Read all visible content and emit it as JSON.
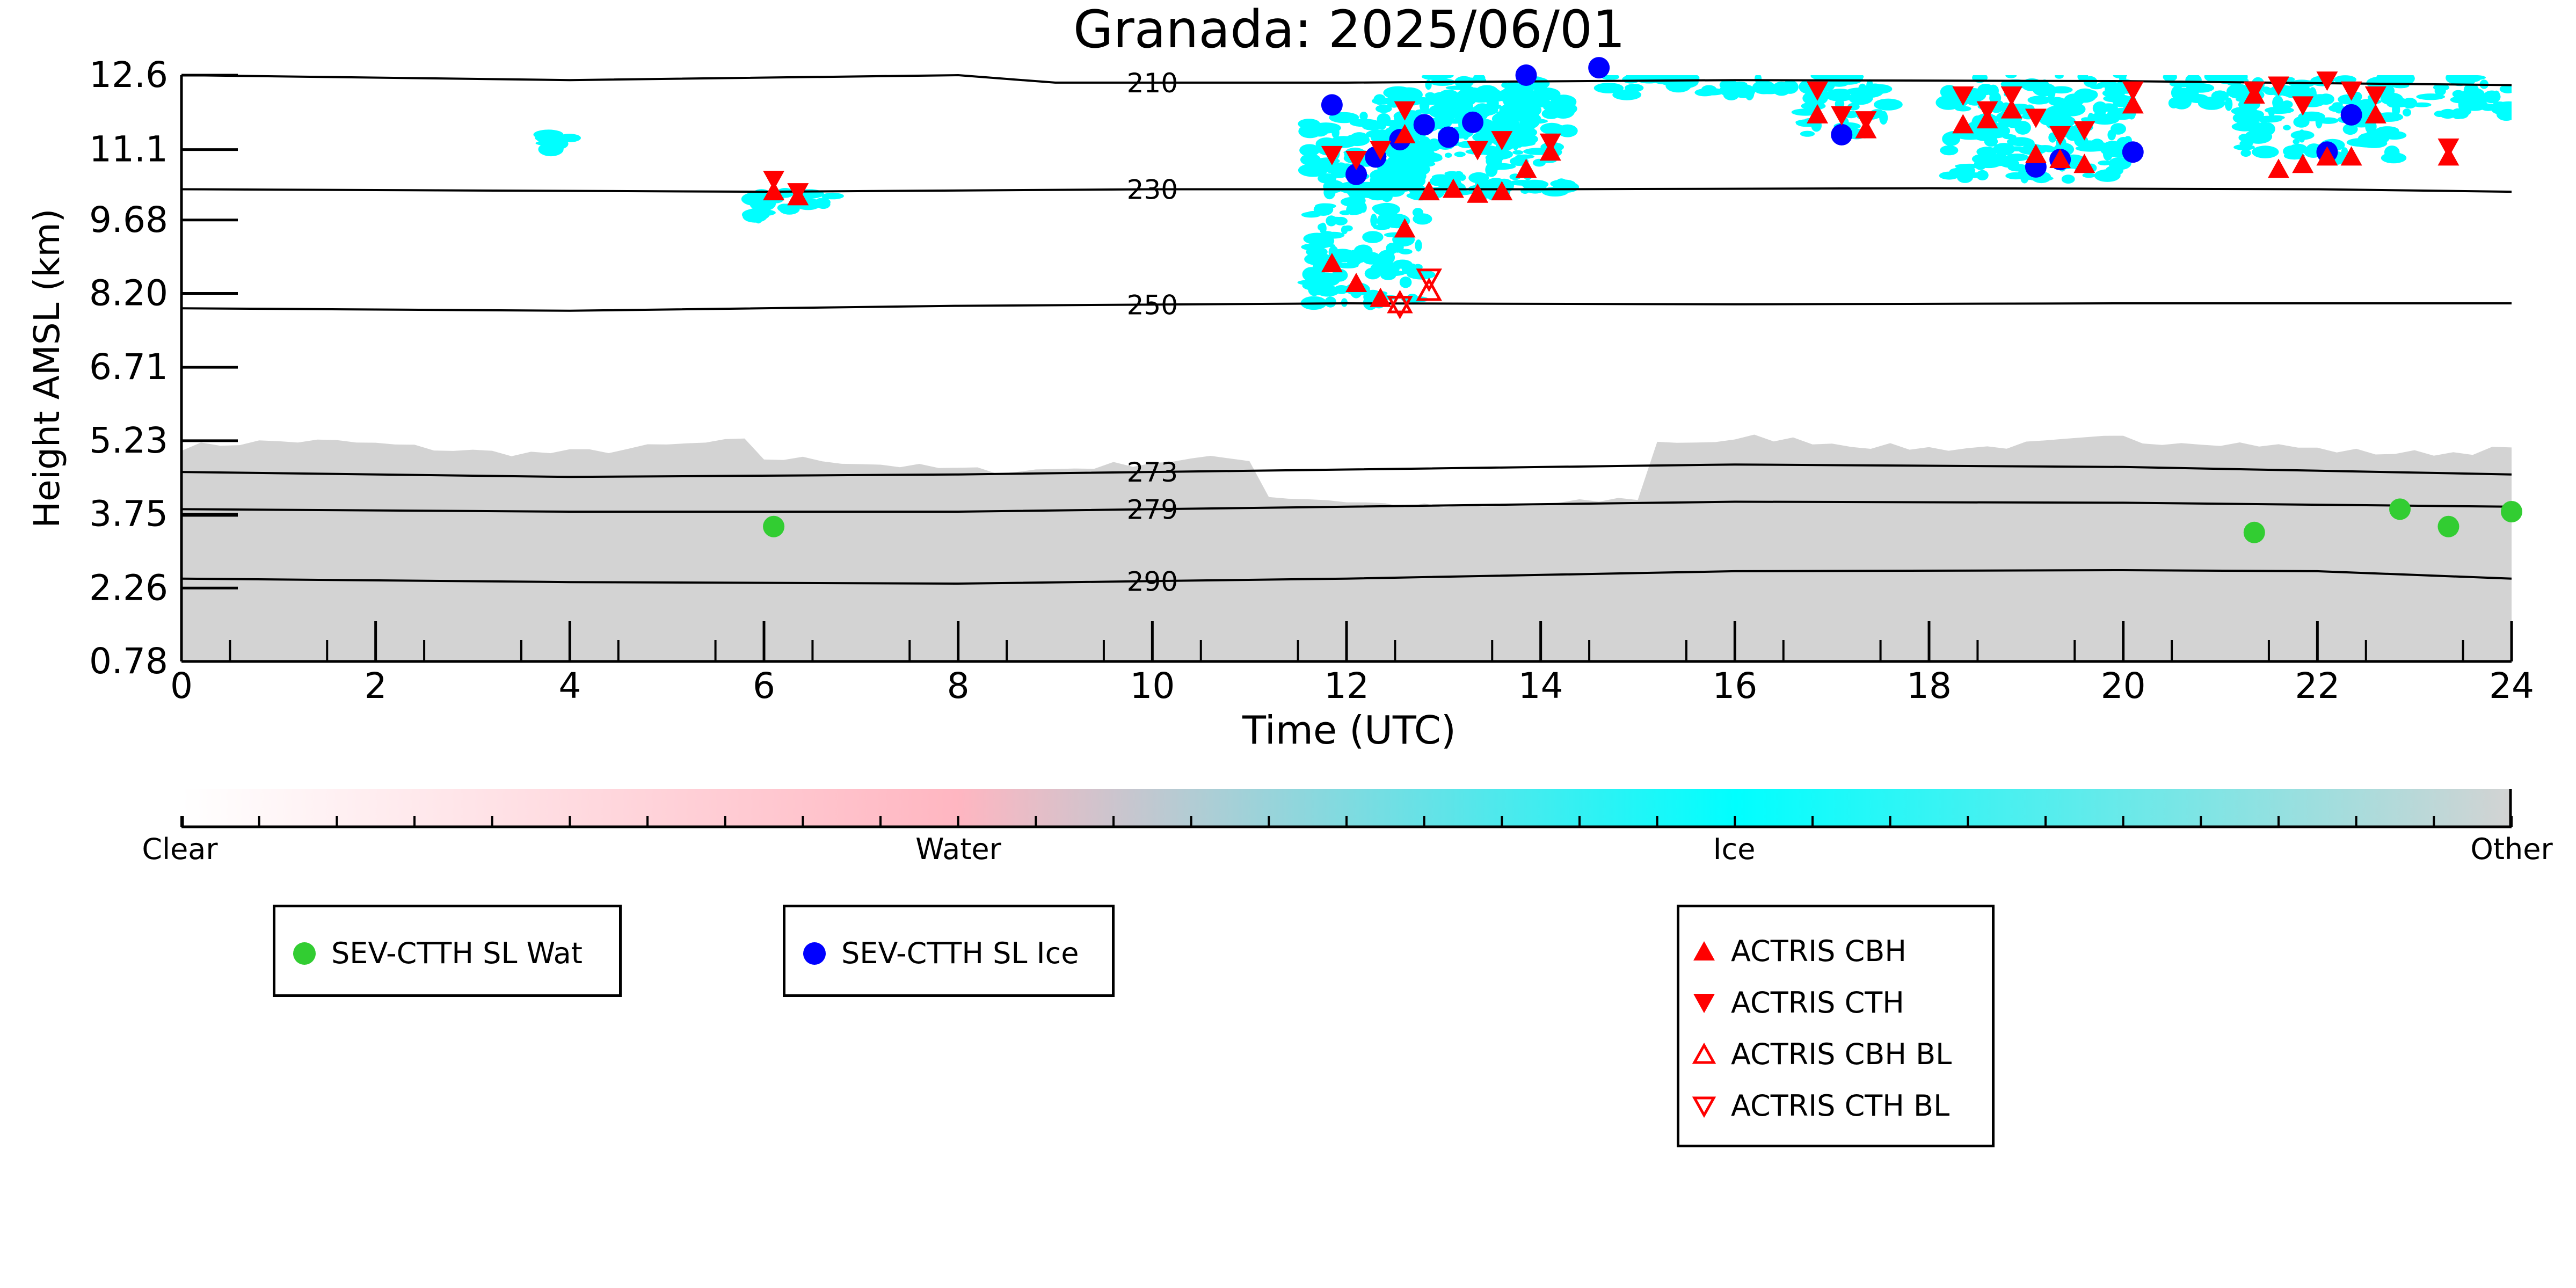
{
  "chart_data": {
    "type": "scatter",
    "title": "Granada: 2025/06/01",
    "xlabel": "Time (UTC)",
    "ylabel": "Height AMSL (km)",
    "xlim": [
      0,
      24
    ],
    "ylim": [
      0.78,
      12.6
    ],
    "xticks": [
      "0",
      "2",
      "4",
      "6",
      "8",
      "10",
      "12",
      "14",
      "16",
      "18",
      "20",
      "22",
      "24"
    ],
    "yticks": [
      "0.78",
      "2.26",
      "3.75",
      "5.23",
      "6.71",
      "8.20",
      "9.68",
      "11.1",
      "12.6"
    ],
    "ytick_values": [
      0.78,
      2.26,
      3.75,
      5.23,
      6.71,
      8.2,
      9.68,
      11.1,
      12.6
    ],
    "colorbar": {
      "labels": [
        "Clear",
        "Water",
        "Ice",
        "Other"
      ],
      "colors": [
        "#ffffff",
        "#ffb6c1",
        "#00ffff",
        "#d3d3d3"
      ]
    },
    "isotherms": [
      {
        "label": "210",
        "points": [
          [
            0,
            12.6
          ],
          [
            4,
            12.5
          ],
          [
            8,
            12.6
          ],
          [
            9,
            12.45
          ],
          [
            12,
            12.45
          ],
          [
            16,
            12.5
          ],
          [
            20,
            12.48
          ],
          [
            24,
            12.4
          ]
        ]
      },
      {
        "label": "230",
        "points": [
          [
            0,
            10.3
          ],
          [
            6,
            10.25
          ],
          [
            10,
            10.3
          ],
          [
            14,
            10.3
          ],
          [
            18,
            10.32
          ],
          [
            22,
            10.3
          ],
          [
            24,
            10.25
          ]
        ]
      },
      {
        "label": "250",
        "points": [
          [
            0,
            7.9
          ],
          [
            4,
            7.85
          ],
          [
            8,
            7.95
          ],
          [
            12,
            8.0
          ],
          [
            16,
            7.98
          ],
          [
            20,
            8.0
          ],
          [
            24,
            8.0
          ]
        ]
      },
      {
        "label": "273",
        "points": [
          [
            0,
            4.6
          ],
          [
            4,
            4.5
          ],
          [
            8,
            4.55
          ],
          [
            12,
            4.65
          ],
          [
            16,
            4.75
          ],
          [
            20,
            4.7
          ],
          [
            24,
            4.55
          ]
        ]
      },
      {
        "label": "279",
        "points": [
          [
            0,
            3.85
          ],
          [
            4,
            3.8
          ],
          [
            8,
            3.8
          ],
          [
            12,
            3.9
          ],
          [
            16,
            4.0
          ],
          [
            20,
            3.98
          ],
          [
            24,
            3.9
          ]
        ]
      },
      {
        "label": "290",
        "points": [
          [
            0,
            2.45
          ],
          [
            4,
            2.38
          ],
          [
            8,
            2.35
          ],
          [
            12,
            2.45
          ],
          [
            16,
            2.6
          ],
          [
            20,
            2.62
          ],
          [
            22,
            2.6
          ],
          [
            24,
            2.45
          ]
        ]
      }
    ],
    "series": [
      {
        "name": "SEV-CTTH SL Wat",
        "color": "#32cd32",
        "marker": "circle",
        "x": [
          6.1,
          21.35,
          22.85,
          23.35,
          24.0
        ],
        "y": [
          3.5,
          3.38,
          3.85,
          3.5,
          3.8
        ]
      },
      {
        "name": "SEV-CTTH SL Ice",
        "color": "#0000ff",
        "marker": "circle",
        "x": [
          11.85,
          12.1,
          12.3,
          12.55,
          12.8,
          13.05,
          13.3,
          13.85,
          14.6,
          17.1,
          19.1,
          19.35,
          20.1,
          22.1,
          22.35
        ],
        "y": [
          12.0,
          10.6,
          10.95,
          11.3,
          11.6,
          11.35,
          11.65,
          12.6,
          12.75,
          11.4,
          10.75,
          10.9,
          11.05,
          11.05,
          11.8
        ]
      },
      {
        "name": "ACTRIS CBH",
        "color": "#ff0000",
        "marker": "triangle-up",
        "x": [
          6.1,
          6.35,
          11.85,
          12.1,
          12.35,
          12.6,
          12.6,
          12.85,
          13.1,
          13.35,
          13.6,
          13.85,
          14.1,
          16.85,
          17.35,
          18.35,
          18.6,
          18.85,
          19.1,
          19.35,
          19.6,
          20.1,
          21.35,
          21.6,
          21.85,
          22.1,
          22.35,
          22.6,
          23.35
        ],
        "y": [
          10.25,
          10.15,
          8.8,
          8.4,
          8.1,
          9.5,
          11.4,
          10.25,
          10.3,
          10.2,
          10.25,
          10.7,
          11.05,
          11.8,
          11.5,
          11.6,
          11.7,
          11.9,
          11.0,
          10.9,
          10.8,
          12.0,
          12.2,
          10.7,
          10.8,
          10.95,
          10.95,
          11.8,
          10.95
        ]
      },
      {
        "name": "ACTRIS CTH",
        "color": "#ff0000",
        "marker": "triangle-down",
        "x": [
          6.1,
          6.35,
          11.85,
          12.1,
          12.35,
          12.6,
          13.35,
          13.6,
          14.1,
          16.85,
          17.1,
          17.35,
          18.35,
          18.6,
          18.85,
          19.1,
          19.35,
          19.6,
          20.1,
          21.35,
          21.6,
          21.85,
          22.1,
          22.35,
          22.6,
          23.35
        ],
        "y": [
          10.5,
          10.25,
          11.0,
          10.9,
          11.1,
          11.9,
          11.1,
          11.3,
          11.25,
          12.3,
          11.8,
          11.7,
          12.2,
          11.9,
          12.2,
          11.75,
          11.4,
          11.5,
          12.3,
          12.3,
          12.4,
          12.0,
          12.5,
          12.3,
          12.2,
          11.15
        ]
      },
      {
        "name": "ACTRIS CBH BL",
        "color": "#ff0000",
        "marker": "triangle-up-open",
        "x": [
          12.55,
          12.85
        ],
        "y": [
          8.0,
          8.25
        ]
      },
      {
        "name": "ACTRIS CTH BL",
        "color": "#ff0000",
        "marker": "triangle-down-open",
        "x": [
          12.55,
          12.85
        ],
        "y": [
          7.95,
          8.5
        ]
      }
    ],
    "grid": false,
    "legend_placement": "below"
  }
}
